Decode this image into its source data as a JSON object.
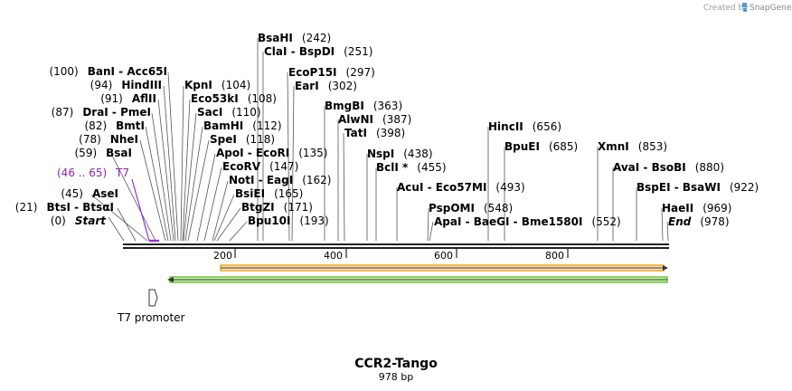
{
  "credit": {
    "created_by": "Created by",
    "brand": "SnapGene"
  },
  "map": {
    "name": "CCR2-Tango",
    "length_label": "978 bp",
    "total_bp": 978
  },
  "ticks": [
    {
      "pos": 200,
      "label": "200"
    },
    {
      "pos": 400,
      "label": "400"
    },
    {
      "pos": 600,
      "label": "600"
    },
    {
      "pos": 800,
      "label": "800"
    }
  ],
  "features": {
    "t7_label": "T7",
    "t7_range": "(46 .. 65)",
    "t7_promoter_label": "T7 promoter"
  },
  "sites": [
    {
      "num": "(0)",
      "name": "Start",
      "italic": true
    },
    {
      "num": "(21)",
      "name": "BtsI  -  BtsαI"
    },
    {
      "num": "(45)",
      "name": "AseI"
    },
    {
      "num": "(59)",
      "name": "BsaI"
    },
    {
      "num": "(78)",
      "name": "NheI"
    },
    {
      "num": "(82)",
      "name": "BmtI"
    },
    {
      "num": "(87)",
      "name": "DraI  -  PmeI"
    },
    {
      "num": "(91)",
      "name": "AflII"
    },
    {
      "num": "(94)",
      "name": "HindIII"
    },
    {
      "num": "(100)",
      "name": "BanI  -  Acc65I"
    },
    {
      "name": "KpnI",
      "num": "(104)"
    },
    {
      "name": "Eco53kI",
      "num": "(108)"
    },
    {
      "name": "SacI",
      "num": "(110)"
    },
    {
      "name": "BamHI",
      "num": "(112)"
    },
    {
      "name": "SpeI",
      "num": "(118)"
    },
    {
      "name": "ApoI  -  EcoRI",
      "num": "(135)"
    },
    {
      "name": "EcoRV",
      "num": "(147)"
    },
    {
      "name": "NotI  -  EagI",
      "num": "(162)"
    },
    {
      "name": "BsiEI",
      "num": "(165)"
    },
    {
      "name": "BtgZI",
      "num": "(171)"
    },
    {
      "name": "Bpu10I",
      "num": "(193)"
    },
    {
      "name": "BsaHI",
      "num": "(242)"
    },
    {
      "name": "ClaI  -  BspDI",
      "num": "(251)"
    },
    {
      "name": "EcoP15I",
      "num": "(297)"
    },
    {
      "name": "EarI",
      "num": "(302)"
    },
    {
      "name": "BmgBI",
      "num": "(363)"
    },
    {
      "name": "AlwNI",
      "num": "(387)"
    },
    {
      "name": "TatI",
      "num": "(398)"
    },
    {
      "name": "NspI",
      "num": "(438)"
    },
    {
      "name": "BclI *",
      "num": "(455)"
    },
    {
      "name": "AcuI  -  Eco57MI",
      "num": "(493)"
    },
    {
      "name": "PspOMI",
      "num": "(548)"
    },
    {
      "name": "ApaI  -  BaeGI  -  Bme1580I",
      "num": "(552)"
    },
    {
      "name": "HincII",
      "num": "(656)"
    },
    {
      "name": "BpuEI",
      "num": "(685)"
    },
    {
      "name": "XmnI",
      "num": "(853)"
    },
    {
      "name": "AvaI  -  BsoBI",
      "num": "(880)"
    },
    {
      "name": "BspEI  -  BsaWI",
      "num": "(922)"
    },
    {
      "name": "HaeII",
      "num": "(969)"
    },
    {
      "name": "End",
      "num": "(978)",
      "italic": true
    }
  ],
  "colors": {
    "orange_arrow": "#f5a623",
    "orange_fill": "#fce3b4",
    "green_arrow": "#6ec43c",
    "green_fill": "#c8f0a6",
    "t7_purple": "#9b2fd0",
    "backbone": "#222222"
  }
}
